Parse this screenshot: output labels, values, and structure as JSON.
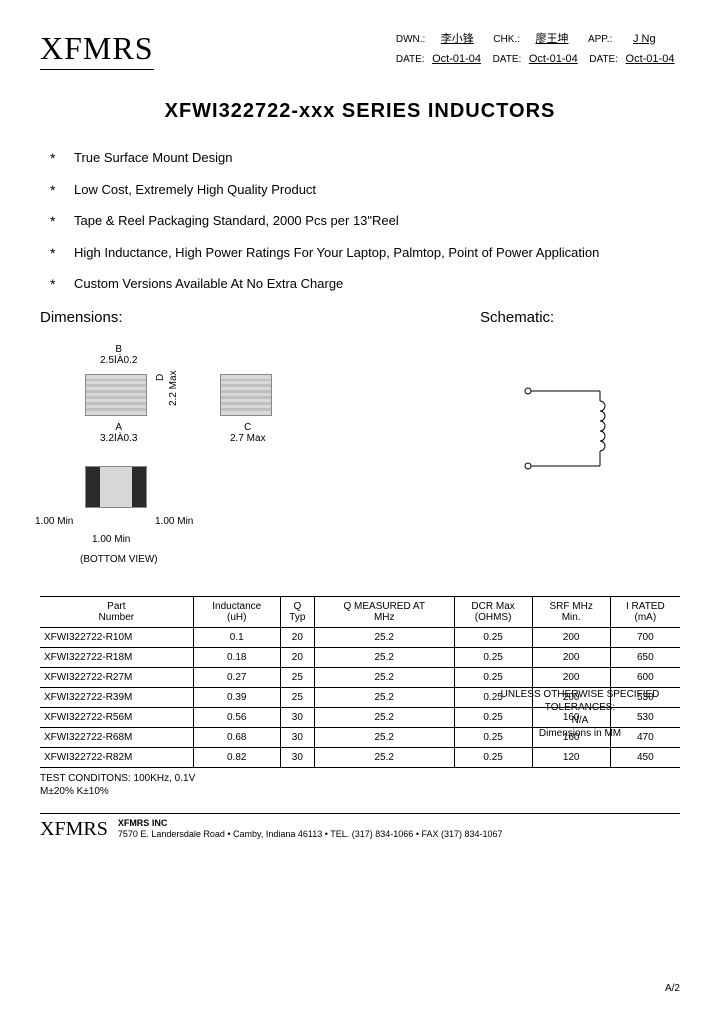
{
  "company": "XFMRS",
  "approvals": {
    "row1": [
      {
        "label": "DWN.:",
        "val": "李小锋"
      },
      {
        "label": "CHK.:",
        "val": "廖王坤"
      },
      {
        "label": "APP.:",
        "val": "J Ng"
      }
    ],
    "row2": [
      {
        "label": "DATE:",
        "val": "Oct-01-04"
      },
      {
        "label": "DATE:",
        "val": "Oct-01-04"
      },
      {
        "label": "DATE:",
        "val": "Oct-01-04"
      }
    ]
  },
  "title": "XFWI322722-xxx SERIES INDUCTORS",
  "features": [
    "True Surface Mount Design",
    "Low Cost, Extremely High Quality Product",
    "Tape & Reel Packaging Standard, 2000 Pcs per 13\"Reel",
    "High Inductance, High Power Ratings For Your Laptop, Palmtop, Point of Power Application",
    "Custom Versions Available At No Extra Charge"
  ],
  "dimensions_title": "Dimensions:",
  "schematic_title": "Schematic:",
  "dims": {
    "B_label": "B",
    "B_val": "2.5ⅠÀ0.2",
    "D_label": "D",
    "D_val": "2.2 Max",
    "A_label": "A",
    "A_val": "3.2ⅠÀ0.3",
    "C_label": "C",
    "C_val": "2.7 Max",
    "min_left": "1.00 Min",
    "min_right": "1.00 Min",
    "min_mid": "1.00 Min",
    "bottom_view": "(BOTTOM VIEW)"
  },
  "tolerance": {
    "l1": "UNLESS OTHERWISE SPECIFIED",
    "l2": "TOLERANCES:",
    "l3": "N/A",
    "l4": "Dimensions in MM"
  },
  "table": {
    "columns": [
      "Part\nNumber",
      "Inductance\n(uH)",
      "Q\nTyp",
      "Q MEASURED AT\nMHz",
      "DCR Max\n(OHMS)",
      "SRF MHz\nMin.",
      "I RATED\n(mA)"
    ],
    "rows": [
      [
        "XFWI322722-R10M",
        "0.1",
        "20",
        "25.2",
        "0.25",
        "200",
        "700"
      ],
      [
        "XFWI322722-R18M",
        "0.18",
        "20",
        "25.2",
        "0.25",
        "200",
        "650"
      ],
      [
        "XFWI322722-R27M",
        "0.27",
        "25",
        "25.2",
        "0.25",
        "200",
        "600"
      ],
      [
        "XFWI322722-R39M",
        "0.39",
        "25",
        "25.2",
        "0.25",
        "200",
        "530"
      ],
      [
        "XFWI322722-R56M",
        "0.56",
        "30",
        "25.2",
        "0.25",
        "160",
        "530"
      ],
      [
        "XFWI322722-R68M",
        "0.68",
        "30",
        "25.2",
        "0.25",
        "160",
        "470"
      ],
      [
        "XFWI322722-R82M",
        "0.82",
        "30",
        "25.2",
        "0.25",
        "120",
        "450"
      ]
    ]
  },
  "test_cond": {
    "l1": "TEST CONDITONS: 100KHz, 0.1V",
    "l2": "M±20%  K±10%"
  },
  "footer": {
    "logo": "XFMRS",
    "name": "XFMRS INC",
    "addr": "7570 E. Landersdale Road • Camby, Indiana 46113 • TEL. (317) 834-1066 • FAX (317) 834-1067"
  },
  "page": "A/2"
}
